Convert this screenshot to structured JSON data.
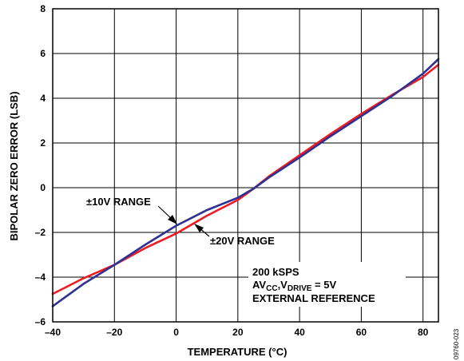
{
  "chart_data": {
    "type": "line",
    "xlabel": "TEMPERATURE (°C)",
    "ylabel": "BIPOLAR ZERO ERROR (LSB)",
    "xlim": [
      -40,
      85
    ],
    "ylim": [
      -6,
      8
    ],
    "xticks": [
      "–40",
      "–20",
      "0",
      "20",
      "40",
      "60",
      "80"
    ],
    "yticks": [
      "–6",
      "–4",
      "–2",
      "0",
      "2",
      "4",
      "6",
      "8"
    ],
    "grid": true,
    "series": [
      {
        "name": "±10V RANGE",
        "color": "#2e3192",
        "x": [
          -40,
          -30,
          -20,
          -10,
          0,
          10,
          20,
          25,
          30,
          40,
          50,
          60,
          70,
          80,
          85
        ],
        "y": [
          -5.3,
          -4.3,
          -3.45,
          -2.55,
          -1.7,
          -1.0,
          -0.45,
          -0.05,
          0.45,
          1.35,
          2.3,
          3.2,
          4.1,
          5.1,
          5.75
        ]
      },
      {
        "name": "±20V RANGE",
        "color": "#ed1c24",
        "x": [
          -40,
          -30,
          -20,
          -10,
          0,
          10,
          20,
          25,
          30,
          40,
          50,
          60,
          70,
          80,
          85
        ],
        "y": [
          -4.75,
          -4.05,
          -3.45,
          -2.7,
          -2.05,
          -1.25,
          -0.55,
          -0.05,
          0.5,
          1.45,
          2.4,
          3.3,
          4.15,
          4.95,
          5.5
        ]
      }
    ],
    "annotations": {
      "label_10v": "±10V RANGE",
      "label_20v": "±20V RANGE",
      "cond_line1": "200 kSPS",
      "cond_line2_av": "AV",
      "cond_line2_cc": "CC",
      "cond_line2_v": ",V",
      "cond_line2_drive": "DRIVE",
      "cond_line2_tail": " = 5V",
      "cond_line3": "EXTERNAL REFERENCE"
    },
    "figure_id": "09760-023"
  }
}
